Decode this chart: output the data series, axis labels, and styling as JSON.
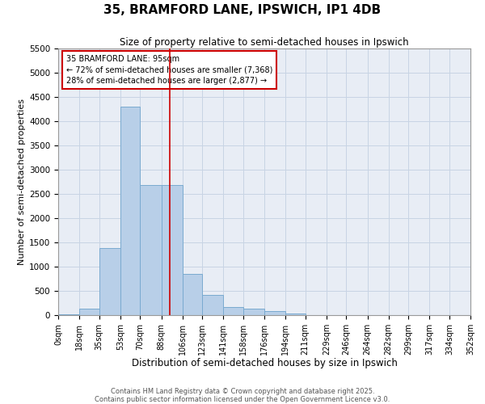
{
  "title": "35, BRAMFORD LANE, IPSWICH, IP1 4DB",
  "subtitle": "Size of property relative to semi-detached houses in Ipswich",
  "xlabel": "Distribution of semi-detached houses by size in Ipswich",
  "ylabel": "Number of semi-detached properties",
  "property_size": 95,
  "property_label": "35 BRAMFORD LANE: 95sqm",
  "pct_smaller": 72,
  "pct_larger": 28,
  "count_smaller": 7368,
  "count_larger": 2877,
  "bins": [
    0,
    18,
    35,
    53,
    70,
    88,
    106,
    123,
    141,
    158,
    176,
    194,
    211,
    229,
    246,
    264,
    282,
    299,
    317,
    334,
    352
  ],
  "bin_labels": [
    "0sqm",
    "18sqm",
    "35sqm",
    "53sqm",
    "70sqm",
    "88sqm",
    "106sqm",
    "123sqm",
    "141sqm",
    "158sqm",
    "176sqm",
    "194sqm",
    "211sqm",
    "229sqm",
    "246sqm",
    "264sqm",
    "282sqm",
    "299sqm",
    "317sqm",
    "334sqm",
    "352sqm"
  ],
  "values": [
    20,
    130,
    1380,
    4300,
    2680,
    2680,
    850,
    420,
    175,
    130,
    90,
    30,
    5,
    0,
    0,
    0,
    0,
    0,
    0,
    0
  ],
  "bar_color": "#b8cfe8",
  "bar_edge_color": "#7aaad0",
  "vline_color": "#cc0000",
  "vline_x": 95,
  "annotation_box_color": "#cc0000",
  "grid_color": "#c8d4e4",
  "background_color": "#e8edf5",
  "ylim": [
    0,
    5500
  ],
  "yticks": [
    0,
    500,
    1000,
    1500,
    2000,
    2500,
    3000,
    3500,
    4000,
    4500,
    5000,
    5500
  ],
  "footer_line1": "Contains HM Land Registry data © Crown copyright and database right 2025.",
  "footer_line2": "Contains public sector information licensed under the Open Government Licence v3.0."
}
